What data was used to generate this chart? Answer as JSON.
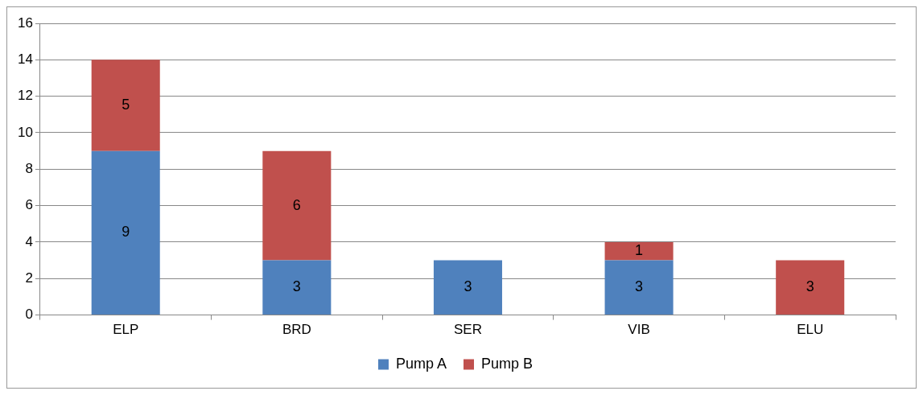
{
  "chart_data": {
    "type": "bar",
    "stacked": true,
    "categories": [
      "ELP",
      "BRD",
      "SER",
      "VIB",
      "ELU"
    ],
    "series": [
      {
        "name": "Pump A",
        "color": "#4f81bd",
        "values": [
          9,
          3,
          3,
          3,
          null
        ]
      },
      {
        "name": "Pump B",
        "color": "#c0504d",
        "values": [
          5,
          6,
          null,
          1,
          3
        ]
      }
    ],
    "ylim": [
      0,
      16
    ],
    "yticks": [
      0,
      2,
      4,
      6,
      8,
      10,
      12,
      14,
      16
    ],
    "grid": "y",
    "legend": "bottom",
    "data_labels": true
  }
}
